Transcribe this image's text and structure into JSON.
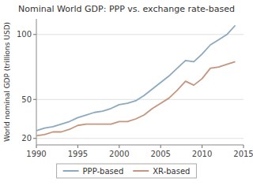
{
  "chart_data": {
    "type": "line",
    "title": "Nominal World GDP: PPP vs. exchange rate-based",
    "ylabel": "World nominal GDP (trillions USD)",
    "x": [
      1990,
      1991,
      1992,
      1993,
      1994,
      1995,
      1996,
      1997,
      1998,
      1999,
      2000,
      2001,
      2002,
      2003,
      2004,
      2005,
      2006,
      2007,
      2008,
      2009,
      2010,
      2011,
      2012,
      2013,
      2014
    ],
    "series": [
      {
        "name": "PPP-based",
        "color": "#8BAABF",
        "values": [
          26,
          28,
          29,
          31,
          33,
          36,
          38,
          40,
          41,
          43,
          46,
          47,
          49,
          53,
          58,
          63,
          68,
          74,
          80,
          79,
          85,
          92,
          96,
          100,
          107
        ]
      },
      {
        "name": "XR-based",
        "color": "#C4967E",
        "values": [
          22,
          23,
          25,
          25,
          27,
          30,
          31,
          31,
          31,
          31,
          33,
          33,
          35,
          38,
          43,
          47,
          51,
          57,
          64,
          61,
          66,
          74,
          75,
          77,
          79
        ]
      }
    ],
    "xlim": [
      1990,
      2015
    ],
    "ylim": [
      15,
      112
    ],
    "xticks": [
      1990,
      1995,
      2000,
      2005,
      2010,
      2015
    ],
    "yticks": [
      20,
      50,
      100
    ],
    "grid": true,
    "legend": "bottom"
  }
}
